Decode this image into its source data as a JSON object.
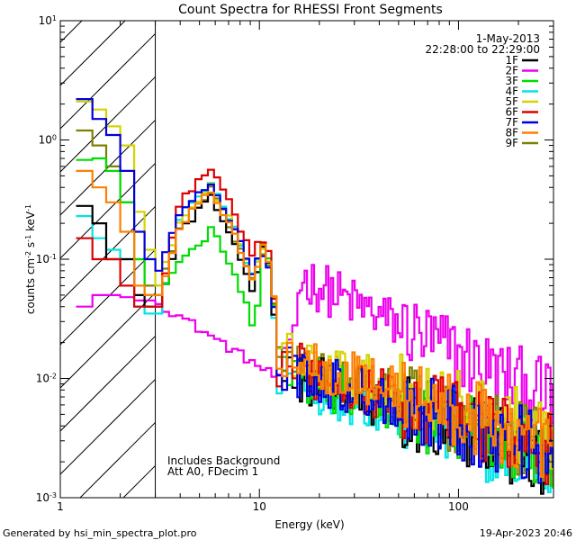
{
  "chart_data": {
    "type": "line",
    "title": "Count Spectra for RHESSI Front Segments",
    "xlabel": "Energy (keV)",
    "ylabel": "counts cm^-2 s^-1 keV^-1",
    "ylabel_parts": {
      "base": "counts cm",
      "exp1": "-2",
      "mid": " s",
      "exp2": "-1",
      "tail": " keV",
      "exp3": "-1"
    },
    "x_scale": "log",
    "y_scale": "log",
    "xlim": [
      1,
      300
    ],
    "ylim": [
      0.001,
      10
    ],
    "x_ticks": [
      {
        "value": 1,
        "label": "1"
      },
      {
        "value": 10,
        "label": "10"
      },
      {
        "value": 100,
        "label": "100"
      }
    ],
    "y_ticks": [
      {
        "value": 10,
        "base": "10",
        "exp": "1"
      },
      {
        "value": 1,
        "base": "10",
        "exp": "0"
      },
      {
        "value": 0.1,
        "base": "10",
        "exp": "-1"
      },
      {
        "value": 0.01,
        "base": "10",
        "exp": "-2"
      },
      {
        "value": 0.001,
        "base": "10",
        "exp": "-3"
      }
    ],
    "attenuator_edge_keV": 3,
    "date": "1-May-2013",
    "time_range": "22:28:00 to 22:29:00",
    "annotations": [
      "Includes Background",
      "Att A0, FDecim 1"
    ],
    "legend_position": "top-right",
    "series": [
      {
        "name": "1F",
        "color": "#000000",
        "low": [
          0.28,
          0.2,
          0.1,
          0.1,
          0.05,
          0.04,
          0.04
        ],
        "peak": 0.34,
        "k12": 0.13,
        "tail12": 0.012,
        "tail250": 0.0022
      },
      {
        "name": "2F",
        "color": "#ee00ee",
        "low": [
          0.04,
          0.05,
          0.05,
          0.048,
          0.045,
          0.045,
          0.042
        ],
        "peak": 0.03,
        "k12": 0.03,
        "tail12": 0.07,
        "tail250": 0.0075
      },
      {
        "name": "3F",
        "color": "#00dd00",
        "low": [
          0.68,
          0.7,
          0.55,
          0.3,
          0.1,
          0.05,
          0.05
        ],
        "peak": 0.18,
        "k12": 0.14,
        "tail12": 0.012,
        "tail250": 0.0024
      },
      {
        "name": "4F",
        "color": "#00e5e5",
        "low": [
          0.23,
          0.15,
          0.12,
          0.1,
          0.04,
          0.035,
          0.035
        ],
        "peak": 0.44,
        "k12": 0.12,
        "tail12": 0.011,
        "tail250": 0.002
      },
      {
        "name": "5F",
        "color": "#d4d400",
        "low": [
          2.1,
          1.8,
          1.3,
          0.9,
          0.25,
          0.12,
          0.06
        ],
        "peak": 0.42,
        "k12": 0.13,
        "tail12": 0.016,
        "tail250": 0.0036
      },
      {
        "name": "6F",
        "color": "#dd0000",
        "low": [
          0.15,
          0.1,
          0.1,
          0.06,
          0.04,
          0.04,
          0.04
        ],
        "peak": 0.58,
        "k12": 0.16,
        "tail12": 0.014,
        "tail250": 0.0028
      },
      {
        "name": "7F",
        "color": "#0000dd",
        "low": [
          2.2,
          1.5,
          1.1,
          0.55,
          0.17,
          0.1,
          0.08
        ],
        "peak": 0.45,
        "k12": 0.12,
        "tail12": 0.013,
        "tail250": 0.0026
      },
      {
        "name": "8F",
        "color": "#ff7f00",
        "low": [
          0.55,
          0.4,
          0.3,
          0.17,
          0.06,
          0.05,
          0.05
        ],
        "peak": 0.38,
        "k12": 0.14,
        "tail12": 0.017,
        "tail250": 0.003
      },
      {
        "name": "9F",
        "color": "#808000",
        "low": [
          1.2,
          0.9,
          0.6,
          0.3,
          0.1,
          0.06,
          0.06
        ],
        "peak": 0.38,
        "k12": 0.13,
        "tail12": 0.015,
        "tail250": 0.0028
      }
    ]
  },
  "footer": {
    "generated_by": "Generated by hsi_min_spectra_plot.pro",
    "timestamp": "19-Apr-2023 20:46"
  }
}
